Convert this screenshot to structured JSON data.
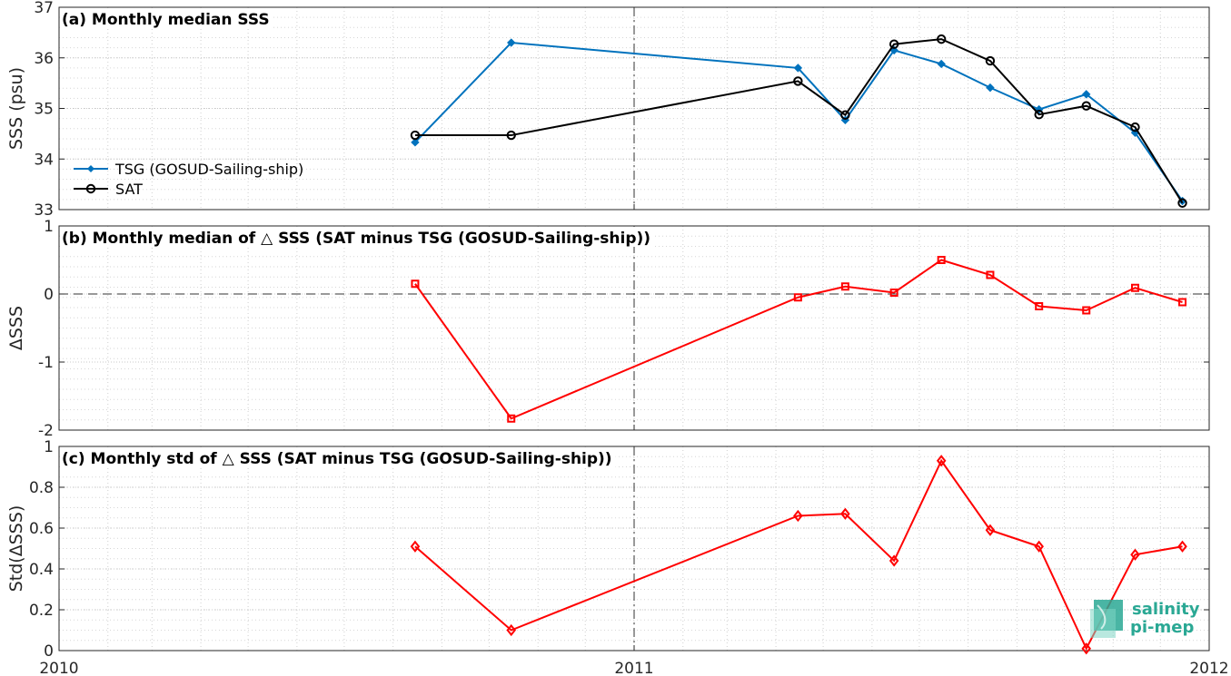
{
  "chart_data": [
    {
      "type": "line",
      "title": "(a) Monthly median SSS",
      "ylabel": "SSS (psu)",
      "ylim": [
        33,
        37
      ],
      "yticks": [
        "33",
        "34",
        "35",
        "36",
        "37"
      ],
      "xlim": [
        "2010-01-01",
        "2012-01-01"
      ],
      "xticks": [
        "2010",
        "2011",
        "2012"
      ],
      "grid": true,
      "legend_position": "middle-left",
      "series": [
        {
          "name": "TSG (GOSUD-Sailing-ship)",
          "color": "#0072bd",
          "marker": "diamond-filled",
          "x": [
            "2010-08-15",
            "2010-10-15",
            "2011-04-15",
            "2011-05-15",
            "2011-06-15",
            "2011-07-15",
            "2011-08-15",
            "2011-09-15",
            "2011-10-15",
            "2011-11-15",
            "2011-12-15"
          ],
          "values": [
            34.33,
            36.3,
            35.8,
            34.77,
            36.15,
            35.88,
            35.41,
            34.98,
            35.28,
            34.52,
            33.17
          ]
        },
        {
          "name": "SAT",
          "color": "#000000",
          "marker": "circle-open",
          "x": [
            "2010-08-15",
            "2010-10-15",
            "2011-04-15",
            "2011-05-15",
            "2011-06-15",
            "2011-07-15",
            "2011-08-15",
            "2011-09-15",
            "2011-10-15",
            "2011-11-15",
            "2011-12-15"
          ],
          "values": [
            34.47,
            34.47,
            35.54,
            34.87,
            36.27,
            36.37,
            35.94,
            34.88,
            35.05,
            34.63,
            33.13
          ]
        }
      ]
    },
    {
      "type": "line",
      "title": "(b) Monthly median of △ SSS (SAT minus TSG (GOSUD-Sailing-ship))",
      "ylabel": "ΔSSS",
      "ylim": [
        -2,
        1
      ],
      "yticks": [
        "-2",
        "-1",
        "0",
        "1"
      ],
      "xlim": [
        "2010-01-01",
        "2012-01-01"
      ],
      "grid": true,
      "reference_line": 0,
      "series": [
        {
          "color": "#ff0000",
          "marker": "square-open",
          "x": [
            "2010-08-15",
            "2010-10-15",
            "2011-04-15",
            "2011-05-15",
            "2011-06-15",
            "2011-07-15",
            "2011-08-15",
            "2011-09-15",
            "2011-10-15",
            "2011-11-15",
            "2011-12-15"
          ],
          "values": [
            0.15,
            -1.83,
            -0.05,
            0.11,
            0.02,
            0.5,
            0.28,
            -0.18,
            -0.24,
            0.09,
            -0.12
          ]
        }
      ]
    },
    {
      "type": "line",
      "title": "(c) Monthly std of △ SSS (SAT minus TSG (GOSUD-Sailing-ship))",
      "ylabel": "Std(ΔSSS)",
      "ylim": [
        0,
        1
      ],
      "yticks": [
        "0",
        "0.2",
        "0.4",
        "0.6",
        "0.8",
        "1"
      ],
      "xlim": [
        "2010-01-01",
        "2012-01-01"
      ],
      "xticks": [
        "2010",
        "2011",
        "2012"
      ],
      "grid": true,
      "series": [
        {
          "color": "#ff0000",
          "marker": "diamond-open",
          "x": [
            "2010-08-15",
            "2010-10-15",
            "2011-04-15",
            "2011-05-15",
            "2011-06-15",
            "2011-07-15",
            "2011-08-15",
            "2011-09-15",
            "2011-10-15",
            "2011-11-15",
            "2011-12-15"
          ],
          "values": [
            0.51,
            0.1,
            0.66,
            0.67,
            0.44,
            0.93,
            0.59,
            0.51,
            0.01,
            0.47,
            0.51
          ]
        }
      ]
    }
  ],
  "logo": {
    "line1": "salinity",
    "line2": "pi-mep"
  }
}
